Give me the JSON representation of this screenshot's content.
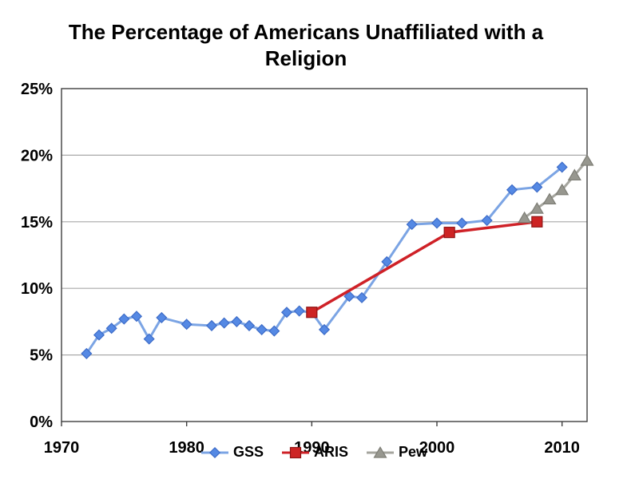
{
  "chart_data": {
    "type": "line",
    "title": "The Percentage of Americans Unaffiliated with a Religion",
    "xlabel": "",
    "ylabel": "",
    "xlim": [
      1970,
      2012
    ],
    "ylim": [
      0,
      25
    ],
    "x_ticks": [
      1970,
      1980,
      1990,
      2000,
      2010
    ],
    "x_tick_labels": [
      "1970",
      "1980",
      "1990",
      "2000",
      "2010"
    ],
    "y_ticks": [
      0,
      5,
      10,
      15,
      20,
      25
    ],
    "y_tick_labels": [
      "0%",
      "5%",
      "10%",
      "15%",
      "20%",
      "25%"
    ],
    "grid": "horizontal",
    "legend_position": "bottom-center",
    "colors": {
      "background": "#ffffff",
      "grid": "#a9a9a9",
      "axis": "#3f3f3f",
      "text": "#000000"
    },
    "series": [
      {
        "name": "GSS",
        "marker": "diamond",
        "line_color": "#7ba4e4",
        "line_width": 3,
        "marker_fill": "#5589e4",
        "marker_stroke": "#3d6cc8",
        "points": [
          [
            1972,
            5.1
          ],
          [
            1973,
            6.5
          ],
          [
            1974,
            7.0
          ],
          [
            1975,
            7.7
          ],
          [
            1976,
            7.9
          ],
          [
            1977,
            6.2
          ],
          [
            1978,
            7.8
          ],
          [
            1980,
            7.3
          ],
          [
            1982,
            7.2
          ],
          [
            1983,
            7.4
          ],
          [
            1984,
            7.5
          ],
          [
            1985,
            7.2
          ],
          [
            1986,
            6.9
          ],
          [
            1987,
            6.8
          ],
          [
            1988,
            8.2
          ],
          [
            1989,
            8.3
          ],
          [
            1990,
            8.2
          ],
          [
            1991,
            6.9
          ],
          [
            1993,
            9.4
          ],
          [
            1994,
            9.3
          ],
          [
            1996,
            12.0
          ],
          [
            1998,
            14.8
          ],
          [
            2000,
            14.9
          ],
          [
            2002,
            14.9
          ],
          [
            2004,
            15.1
          ],
          [
            2006,
            17.4
          ],
          [
            2008,
            17.6
          ],
          [
            2010,
            19.1
          ]
        ]
      },
      {
        "name": "ARIS",
        "marker": "square",
        "line_color": "#cf2127",
        "line_width": 3.5,
        "marker_fill": "#cd2424",
        "marker_stroke": "#8f1515",
        "points": [
          [
            1990,
            8.2
          ],
          [
            2001,
            14.2
          ],
          [
            2008,
            15.0
          ]
        ]
      },
      {
        "name": "Pew",
        "marker": "triangle",
        "line_color": "#a5a59e",
        "line_width": 3,
        "marker_fill": "#97978f",
        "marker_stroke": "#7d7d75",
        "points": [
          [
            2007,
            15.3
          ],
          [
            2008,
            16.0
          ],
          [
            2009,
            16.7
          ],
          [
            2010,
            17.4
          ],
          [
            2011,
            18.5
          ],
          [
            2012,
            19.6
          ]
        ]
      }
    ]
  }
}
